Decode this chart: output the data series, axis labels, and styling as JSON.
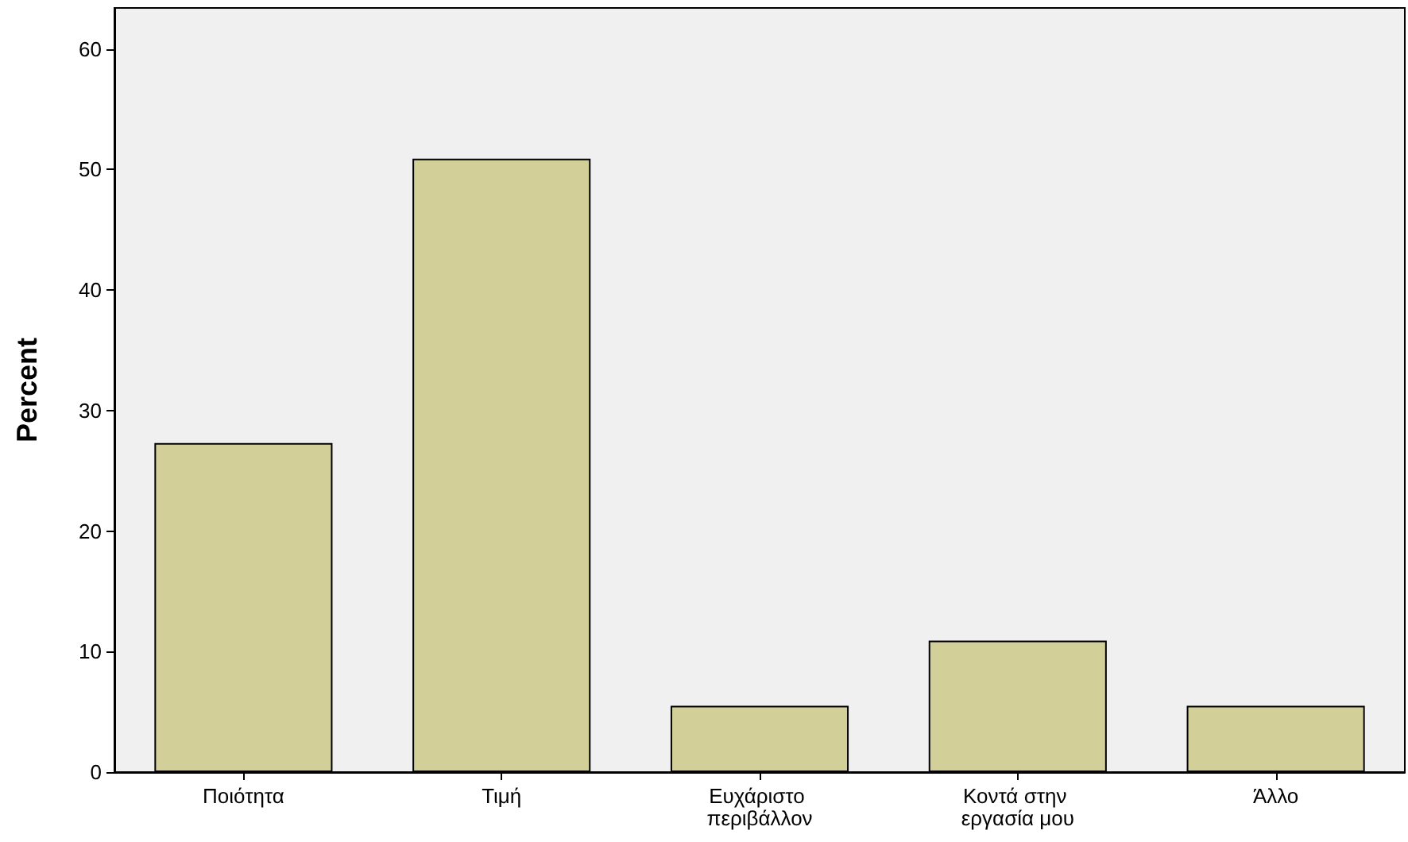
{
  "chart_data": {
    "type": "bar",
    "ylabel": "Percent",
    "categories": [
      "Ποιότητα",
      "Τιμή",
      "Ευχάριστο περιβάλλον",
      "Κοντά στην εργασία μου",
      "Άλλο"
    ],
    "values": [
      27.3,
      50.9,
      5.5,
      10.9,
      5.5
    ],
    "color": "#d3cf99",
    "ylim": [
      0,
      63.4
    ],
    "yticks": [
      0,
      10,
      20,
      30,
      40,
      50,
      60
    ],
    "grid": false
  }
}
